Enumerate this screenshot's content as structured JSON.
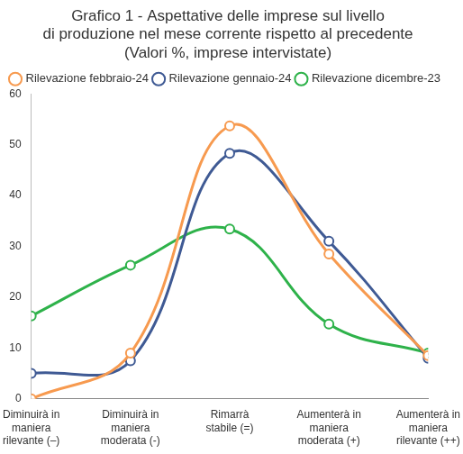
{
  "chart_data": {
    "type": "line",
    "title": [
      "Grafico 1 - Aspettative delle imprese sul livello",
      "di produzione nel mese corrente rispetto al precedente"
    ],
    "subtitle": "(Valori %, imprese intervistate)",
    "categories": [
      "Diminuirà in maniera rilevante (–)",
      "Diminuirà in maniera moderata (-)",
      "Rimarrà stabile (=)",
      "Aumenterà in maniera moderata (+)",
      "Aumenterà in maniera rilevante (++)"
    ],
    "series": [
      {
        "name": "Rilevazione febbraio-24",
        "color": "#f79a4f",
        "values": [
          0,
          9,
          53.7,
          28.5,
          8.5
        ]
      },
      {
        "name": "Rilevazione gennaio-24",
        "color": "#3f5a94",
        "values": [
          5,
          7.5,
          48.3,
          31,
          8
        ]
      },
      {
        "name": "Rilevazione dicembre-23",
        "color": "#2eb24a",
        "values": [
          16.3,
          26.3,
          33.4,
          14.7,
          9
        ]
      }
    ],
    "ylim": [
      0,
      60
    ],
    "yticks": [
      0,
      10,
      20,
      30,
      40,
      50,
      60
    ],
    "grid": false,
    "legend": "top-left",
    "marker": "circle"
  }
}
